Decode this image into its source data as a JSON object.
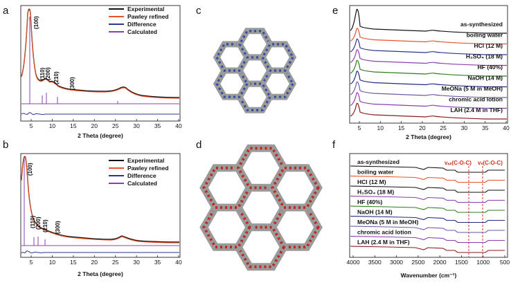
{
  "panels": {
    "a": {
      "label": "a",
      "xlabel": "2 Theta (degree)",
      "xticks": [
        "5",
        "10",
        "15",
        "20",
        "25",
        "30",
        "35",
        "40"
      ],
      "legend": [
        {
          "name": "Experimental",
          "color": "#111111"
        },
        {
          "name": "Pawley refined",
          "color": "#e8542a"
        },
        {
          "name": "Difference",
          "color": "#2b3590"
        },
        {
          "name": "Calculated",
          "color": "#8a3fb0"
        }
      ],
      "peaks": [
        "(100)",
        "(110)",
        "(200)",
        "(210)",
        "(300)"
      ]
    },
    "b": {
      "label": "b",
      "xlabel": "2 Theta (degree)",
      "xticks": [
        "5",
        "10",
        "15",
        "20",
        "25",
        "30",
        "35",
        "40"
      ],
      "legend": [
        {
          "name": "Experimental",
          "color": "#111111"
        },
        {
          "name": "Pawley refined",
          "color": "#e8542a"
        },
        {
          "name": "Difference",
          "color": "#2b3590"
        },
        {
          "name": "Calculated",
          "color": "#8a3fb0"
        }
      ],
      "peaks": [
        "(100)",
        "(110)",
        "(200)",
        "(210)",
        "(300)"
      ]
    },
    "c": {
      "label": "c"
    },
    "d": {
      "label": "d"
    },
    "e": {
      "label": "e",
      "xlabel": "2 Theta (degree)",
      "xticks": [
        "5",
        "10",
        "15",
        "20",
        "25",
        "30",
        "35",
        "40"
      ],
      "series": [
        {
          "name": "as-synthesized",
          "color": "#111111"
        },
        {
          "name": "boiling water",
          "color": "#e8542a"
        },
        {
          "name": "HCl (12 M)",
          "color": "#2b3590"
        },
        {
          "name": "H₂SO₄ (18 M)",
          "color": "#8a3fb0"
        },
        {
          "name": "HF (40%)",
          "color": "#2e7d1e"
        },
        {
          "name": "NaOH (14 M)",
          "color": "#1f2a80"
        },
        {
          "name": "MeONa (5 M in MeOH)",
          "color": "#6a5aa8"
        },
        {
          "name": "chromic acid lotion",
          "color": "#8a3fb0"
        },
        {
          "name": "LAH (2.4 M in THF)",
          "color": "#8b1a1a"
        }
      ]
    },
    "f": {
      "label": "f",
      "xlabel": "Wavenumber (cm⁻¹)",
      "xticks": [
        "4000",
        "3500",
        "3000",
        "2500",
        "2000",
        "1500",
        "1000",
        "500"
      ],
      "annotations": [
        "vₐₛ(C-O-C)",
        "vₛ(C-O-C)"
      ],
      "series": [
        {
          "name": "as-synthesized",
          "color": "#111111"
        },
        {
          "name": "boiling water",
          "color": "#e8542a"
        },
        {
          "name": "HCl (12 M)",
          "color": "#111111"
        },
        {
          "name": "H₂SO₄ (18 M)",
          "color": "#8a3fb0"
        },
        {
          "name": "HF (40%)",
          "color": "#2e7d1e"
        },
        {
          "name": "NaOH (14 M)",
          "color": "#1f2a80"
        },
        {
          "name": "MeONa (5 M in MeOH)",
          "color": "#6a5aa8"
        },
        {
          "name": "chromic acid lotion",
          "color": "#8a3fb0"
        },
        {
          "name": "LAH (2.4 M in THF)",
          "color": "#8b1a1a"
        }
      ]
    }
  }
}
